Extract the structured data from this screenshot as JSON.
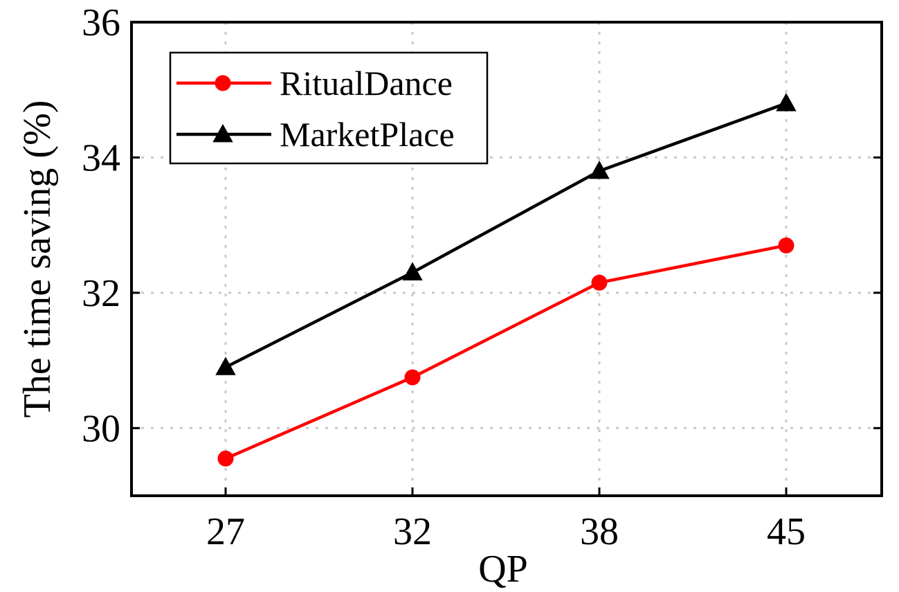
{
  "chart_data": {
    "type": "line",
    "xlabel": "QP",
    "ylabel": "The time saving (%)",
    "categories": [
      "27",
      "32",
      "38",
      "45"
    ],
    "ylim": [
      29,
      36
    ],
    "yticks": [
      "30",
      "32",
      "34",
      "36"
    ],
    "grid": true,
    "legend_position": "top-left",
    "series": [
      {
        "name": "RitualDance",
        "values": [
          29.55,
          30.75,
          32.15,
          32.7
        ],
        "color": "#ff0000",
        "marker": "circle"
      },
      {
        "name": "MarketPlace",
        "values": [
          30.9,
          32.3,
          33.8,
          34.8
        ],
        "color": "#000000",
        "marker": "triangle"
      }
    ]
  }
}
